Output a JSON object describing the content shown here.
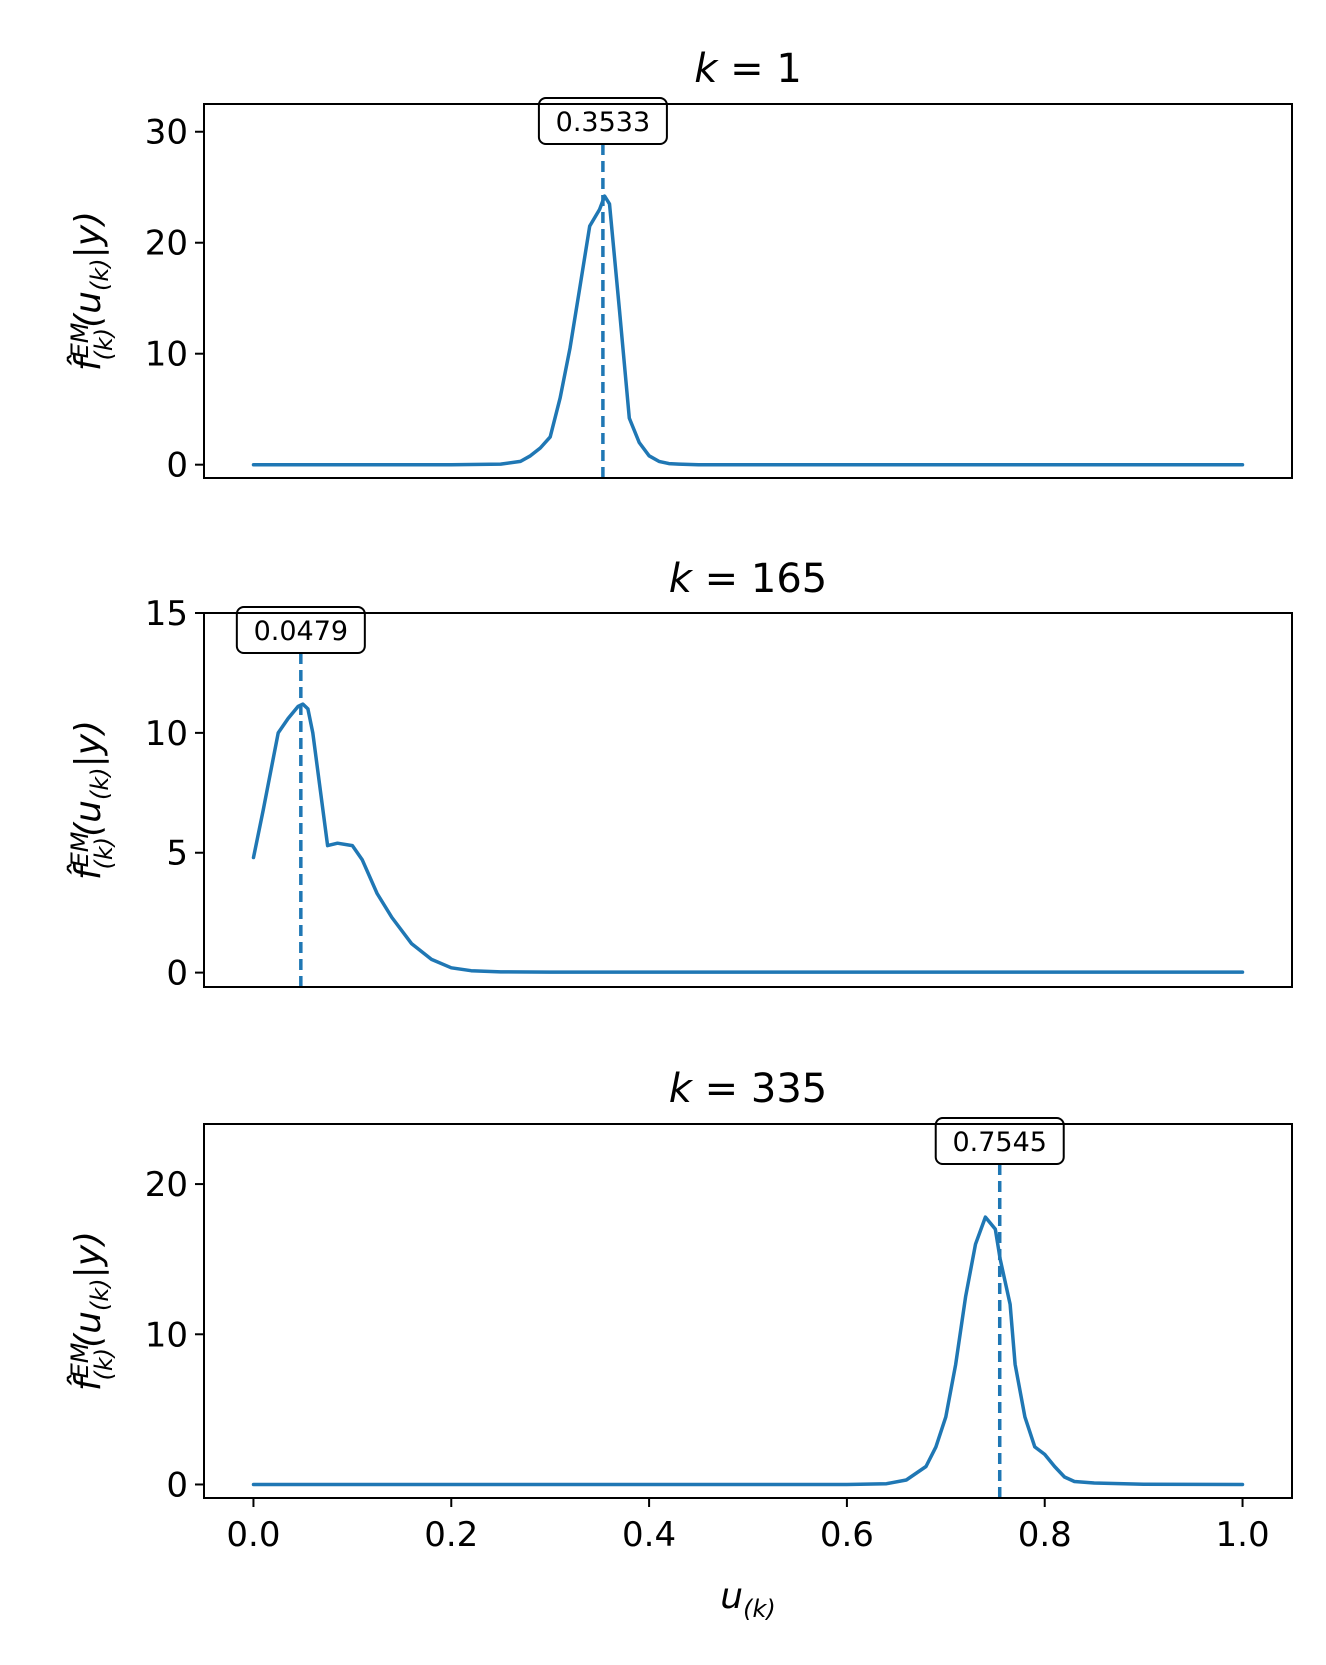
{
  "chart_data": [
    {
      "type": "line",
      "title_var": "k",
      "title_eq": " = 1",
      "ylabel": "f̂(k)EM(u(k)|y)",
      "xlabel": "",
      "xlim": [
        -0.05,
        1.05
      ],
      "ylim": [
        -1.2,
        32.5
      ],
      "yticks": [
        0,
        10,
        20,
        30
      ],
      "xticks": [],
      "annotation": {
        "label": "0.3533",
        "x": 0.3533
      },
      "series": [
        {
          "x": [
            0.0,
            0.05,
            0.1,
            0.15,
            0.2,
            0.25,
            0.27,
            0.28,
            0.29,
            0.3,
            0.31,
            0.32,
            0.33,
            0.34,
            0.35,
            0.355,
            0.36,
            0.37,
            0.38,
            0.39,
            0.4,
            0.41,
            0.42,
            0.43,
            0.45,
            0.5,
            0.6,
            0.7,
            0.8,
            0.9,
            1.0
          ],
          "y": [
            0,
            0,
            0,
            0,
            0,
            0.05,
            0.3,
            0.8,
            1.5,
            2.5,
            6.0,
            10.5,
            16.0,
            21.5,
            23.0,
            24.2,
            23.5,
            14.0,
            4.2,
            2.0,
            0.8,
            0.3,
            0.1,
            0.05,
            0,
            0,
            0,
            0,
            0,
            0,
            0
          ]
        }
      ]
    },
    {
      "type": "line",
      "title_var": "k",
      "title_eq": " = 165",
      "ylabel": "f̂(k)EM(u(k)|y)",
      "xlabel": "",
      "xlim": [
        -0.05,
        1.05
      ],
      "ylim": [
        -0.6,
        15.0
      ],
      "yticks": [
        0,
        5,
        10,
        15
      ],
      "xticks": [],
      "annotation": {
        "label": "0.0479",
        "x": 0.0479
      },
      "series": [
        {
          "x": [
            0.0,
            0.01,
            0.025,
            0.035,
            0.045,
            0.05,
            0.055,
            0.06,
            0.075,
            0.085,
            0.1,
            0.11,
            0.125,
            0.14,
            0.16,
            0.18,
            0.2,
            0.22,
            0.25,
            0.3,
            0.4,
            0.6,
            0.8,
            1.0
          ],
          "y": [
            4.8,
            6.8,
            10.0,
            10.6,
            11.1,
            11.2,
            11.0,
            10.0,
            5.3,
            5.4,
            5.3,
            4.7,
            3.3,
            2.3,
            1.2,
            0.55,
            0.2,
            0.08,
            0.03,
            0.02,
            0.02,
            0.02,
            0.02,
            0.02
          ]
        }
      ]
    },
    {
      "type": "line",
      "title_var": "k",
      "title_eq": " = 335",
      "ylabel": "f̂(k)EM(u(k)|y)",
      "xlabel": "u(k)",
      "xlim": [
        -0.05,
        1.05
      ],
      "ylim": [
        -0.9,
        24.0
      ],
      "yticks": [
        0,
        10,
        20
      ],
      "xticks": [
        0.0,
        0.2,
        0.4,
        0.6,
        0.8,
        1.0
      ],
      "xtick_labels": [
        "0.0",
        "0.2",
        "0.4",
        "0.6",
        "0.8",
        "1.0"
      ],
      "annotation": {
        "label": "0.7545",
        "x": 0.7545
      },
      "series": [
        {
          "x": [
            0.0,
            0.2,
            0.4,
            0.6,
            0.64,
            0.66,
            0.68,
            0.69,
            0.7,
            0.71,
            0.72,
            0.73,
            0.74,
            0.75,
            0.755,
            0.765,
            0.77,
            0.78,
            0.79,
            0.8,
            0.81,
            0.82,
            0.83,
            0.85,
            0.9,
            1.0
          ],
          "y": [
            0,
            0,
            0,
            0,
            0.05,
            0.3,
            1.2,
            2.5,
            4.5,
            8.0,
            12.5,
            16.0,
            17.8,
            17.0,
            15.0,
            12.0,
            8.0,
            4.5,
            2.5,
            2.0,
            1.2,
            0.5,
            0.2,
            0.1,
            0.02,
            0
          ]
        }
      ]
    }
  ]
}
